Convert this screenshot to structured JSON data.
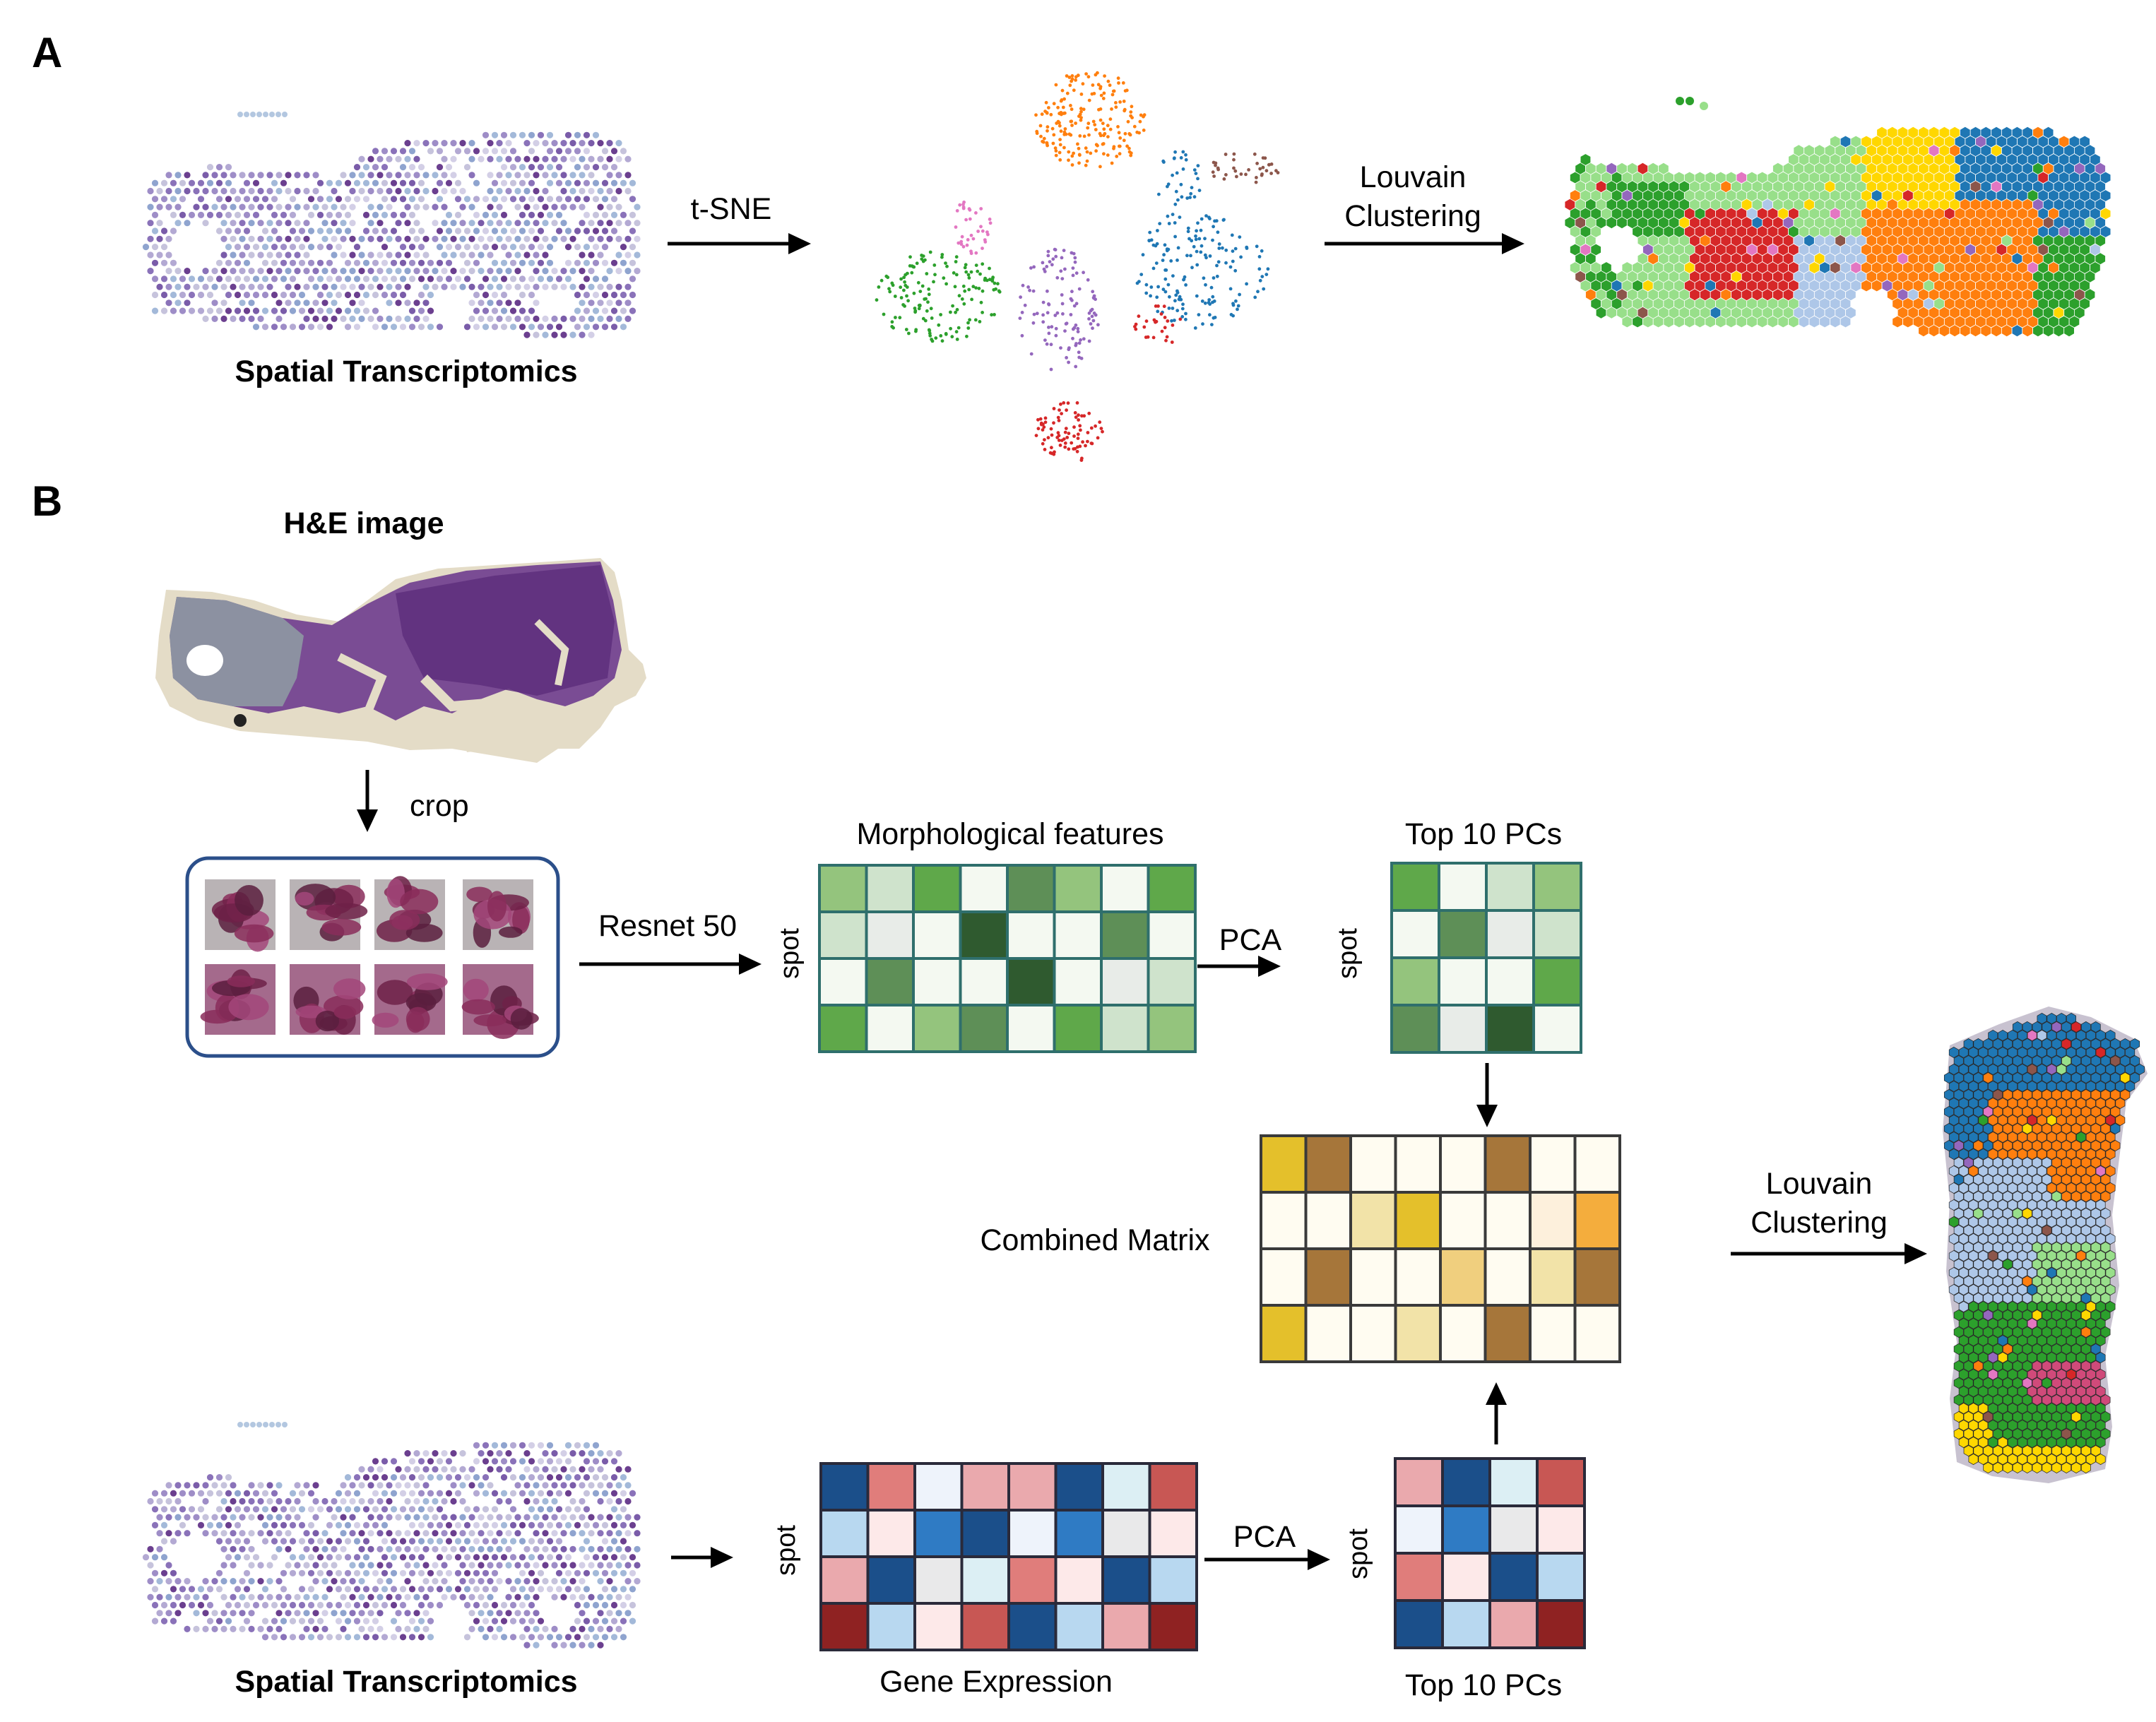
{
  "panels": {
    "a": "A",
    "b": "B"
  },
  "panel_a": {
    "input_label": "Spatial Transcriptomics",
    "arrow1_label": "t-SNE",
    "arrow2_label_line1": "Louvain",
    "arrow2_label_line2": "Clustering"
  },
  "panel_b": {
    "he_title": "H&E image",
    "crop_label": "crop",
    "resnet_label": "Resnet 50",
    "morph_title": "Morphological features",
    "top_pcs_title": "Top 10 PCs",
    "pca_label_top": "PCA",
    "spot_label": "spot",
    "combined_label": "Combined Matrix",
    "louvain_line1": "Louvain",
    "louvain_line2": "Clustering",
    "st_label": "Spatial Transcriptomics",
    "gene_label": "Gene Expression",
    "pca_label_bottom": "PCA",
    "top_pcs_bottom": "Top 10 PCs"
  },
  "colors": {
    "cluster_palette": [
      "#1f77b4",
      "#ff7f0e",
      "#2ca02c",
      "#d62728",
      "#9467bd",
      "#8c564b",
      "#e377c2",
      "#aec7e8",
      "#98df8a",
      "#ffd700"
    ],
    "tissue_purple": "#6b3f8f",
    "frame_blue": "#2b4f8a",
    "morph_grid_border": "#2f6f6c",
    "gene_grid_border": "#2a2a3a",
    "combined_grid_border": "#3a3a3a"
  }
}
